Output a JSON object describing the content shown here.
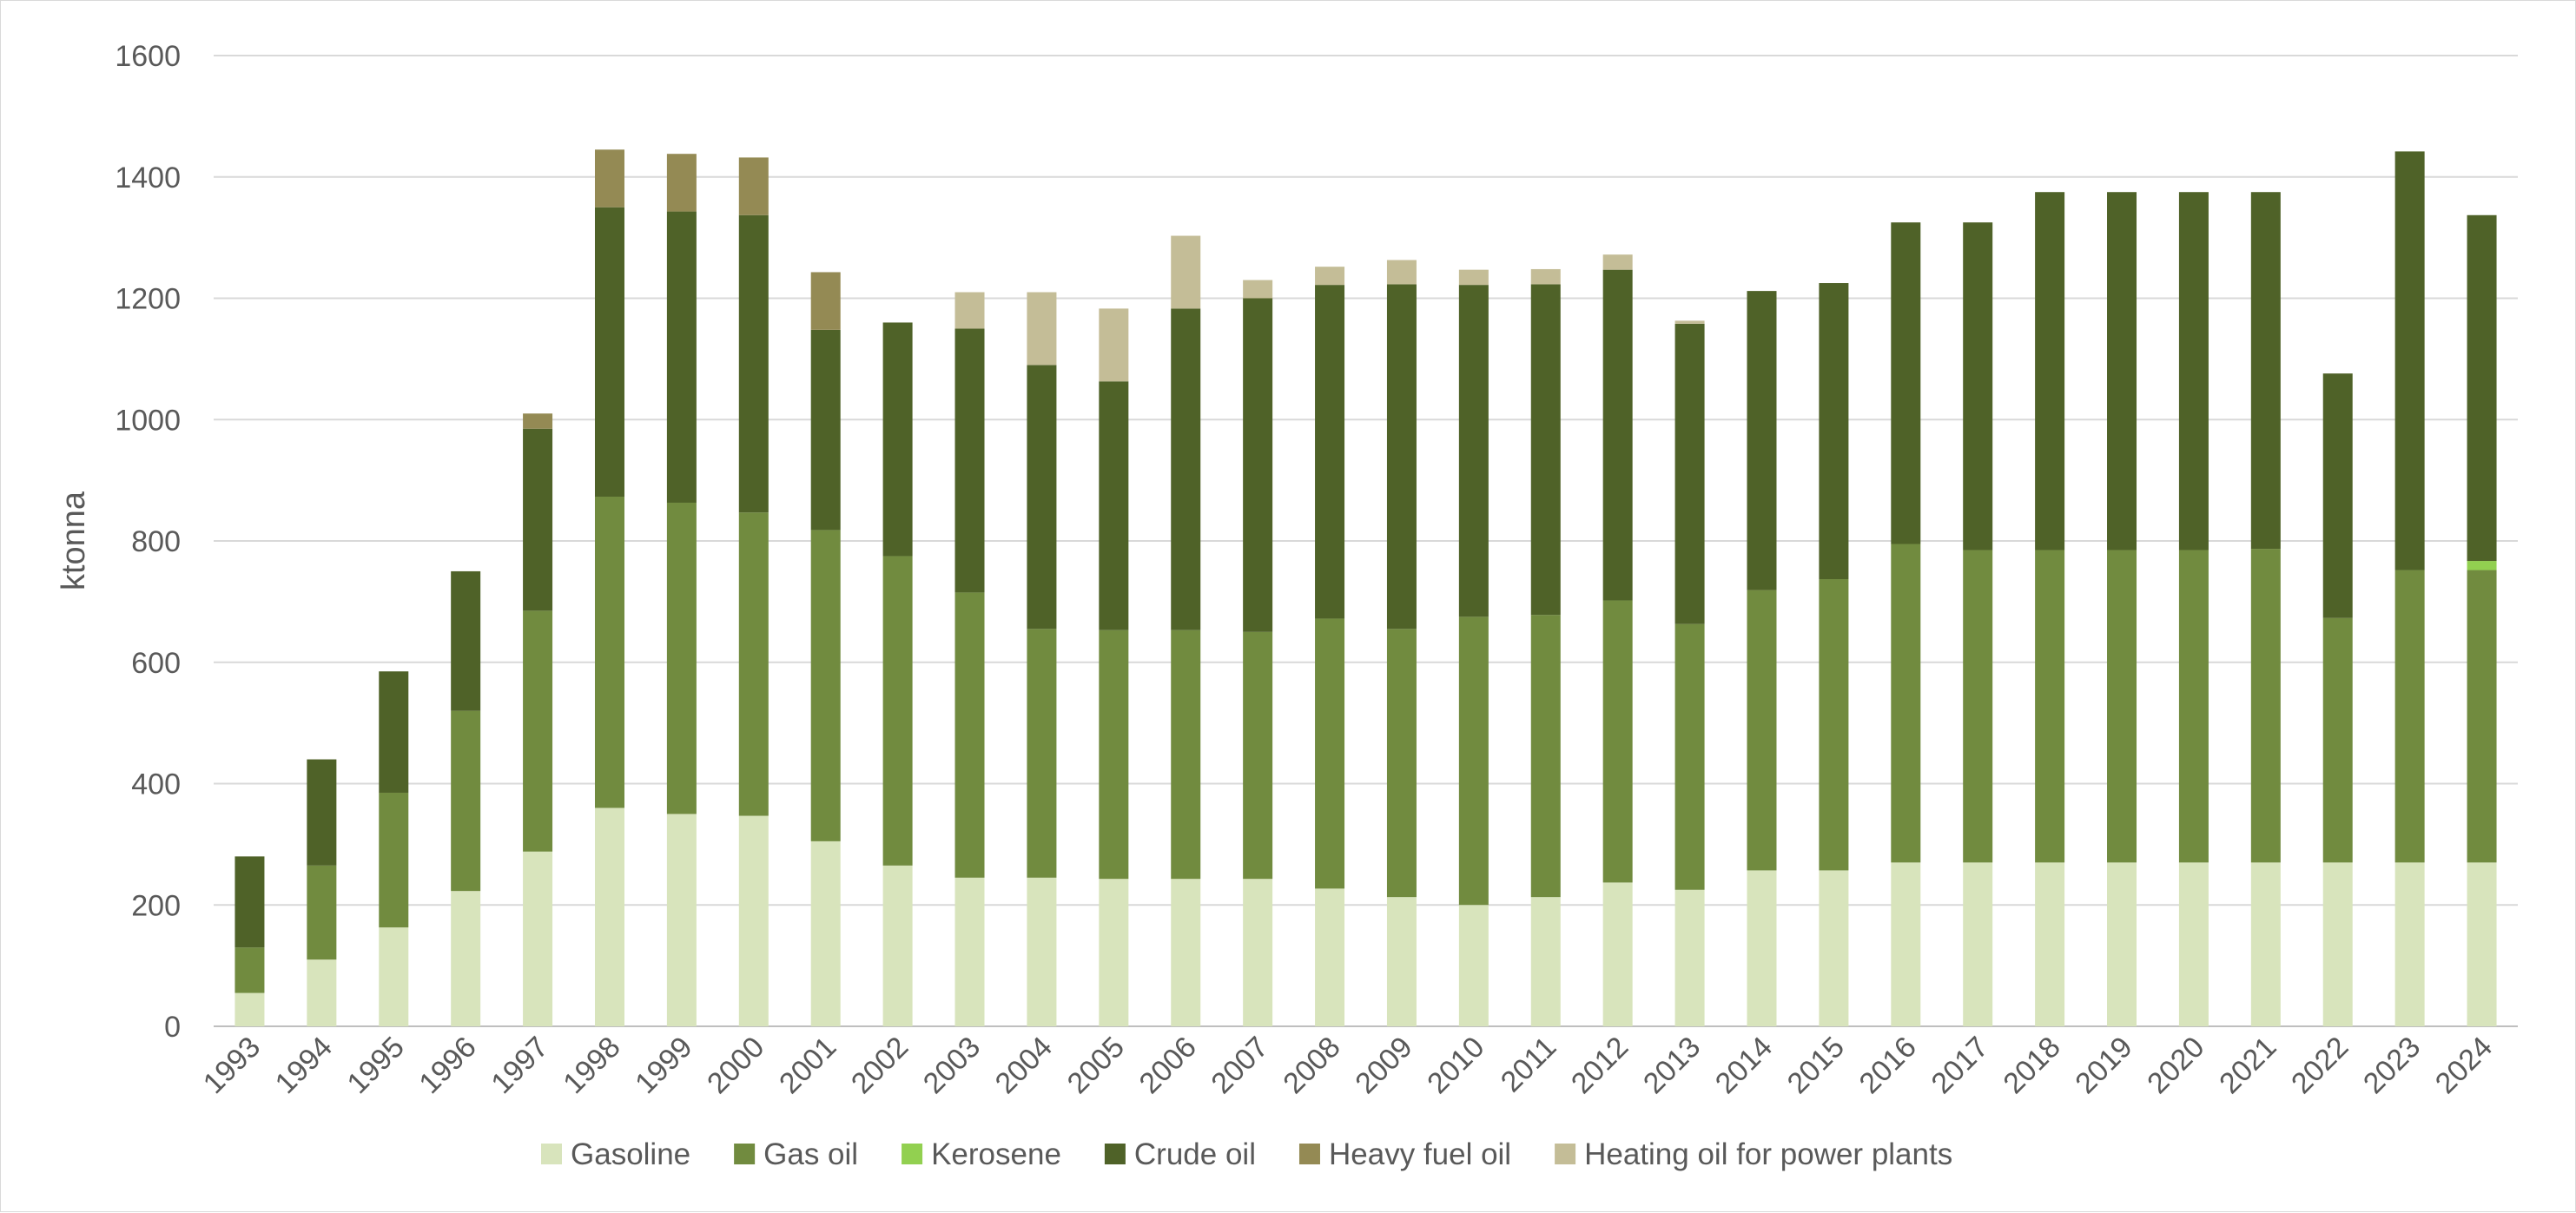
{
  "chart_data": {
    "type": "bar",
    "stacked": true,
    "title": "",
    "xlabel": "",
    "ylabel": "ktonna",
    "ylim": [
      0,
      1600
    ],
    "yticks": [
      0,
      200,
      400,
      600,
      800,
      1000,
      1200,
      1400,
      1600
    ],
    "grid": true,
    "legend_position": "bottom",
    "categories": [
      "1993",
      "1994",
      "1995",
      "1996",
      "1997",
      "1998",
      "1999",
      "2000",
      "2001",
      "2002",
      "2003",
      "2004",
      "2005",
      "2006",
      "2007",
      "2008",
      "2009",
      "2010",
      "2011",
      "2012",
      "2013",
      "2014",
      "2015",
      "2016",
      "2017",
      "2018",
      "2019",
      "2020",
      "2021",
      "2022",
      "2023",
      "2024"
    ],
    "series": [
      {
        "name": "Gasoline",
        "color": "#d8e4bc",
        "values": [
          55,
          110,
          163,
          223,
          288,
          360,
          350,
          347,
          305,
          265,
          245,
          245,
          243,
          243,
          243,
          227,
          213,
          200,
          213,
          237,
          225,
          257,
          257,
          270,
          270,
          270,
          270,
          270,
          270,
          270,
          270,
          270
        ]
      },
      {
        "name": "Gas oil",
        "color": "#718b3f",
        "values": [
          75,
          155,
          222,
          297,
          397,
          513,
          513,
          500,
          513,
          510,
          470,
          410,
          410,
          410,
          407,
          445,
          442,
          475,
          465,
          465,
          438,
          462,
          480,
          525,
          515,
          515,
          515,
          515,
          517,
          403,
          482,
          482
        ]
      },
      {
        "name": "Kerosene",
        "color": "#92d050",
        "values": [
          0,
          0,
          0,
          0,
          0,
          0,
          0,
          0,
          0,
          0,
          0,
          0,
          0,
          0,
          0,
          0,
          0,
          0,
          0,
          0,
          0,
          0,
          0,
          0,
          0,
          0,
          0,
          0,
          0,
          0,
          0,
          15
        ]
      },
      {
        "name": "Crude oil",
        "color": "#4f6228",
        "values": [
          150,
          175,
          200,
          230,
          300,
          477,
          480,
          490,
          330,
          385,
          435,
          435,
          410,
          530,
          550,
          550,
          568,
          547,
          545,
          545,
          495,
          493,
          488,
          530,
          540,
          590,
          590,
          590,
          588,
          403,
          690,
          570
        ]
      },
      {
        "name": "Heavy fuel oil",
        "color": "#948a54",
        "values": [
          0,
          0,
          0,
          0,
          25,
          95,
          95,
          95,
          95,
          0,
          0,
          0,
          0,
          0,
          0,
          0,
          0,
          0,
          0,
          0,
          0,
          0,
          0,
          0,
          0,
          0,
          0,
          0,
          0,
          0,
          0,
          0
        ]
      },
      {
        "name": "Heating oil for power plants",
        "color": "#c4bd97",
        "values": [
          0,
          0,
          0,
          0,
          0,
          0,
          0,
          0,
          0,
          0,
          60,
          120,
          120,
          120,
          30,
          30,
          40,
          25,
          25,
          25,
          5,
          0,
          0,
          0,
          0,
          0,
          0,
          0,
          0,
          0,
          0,
          0
        ]
      }
    ]
  }
}
